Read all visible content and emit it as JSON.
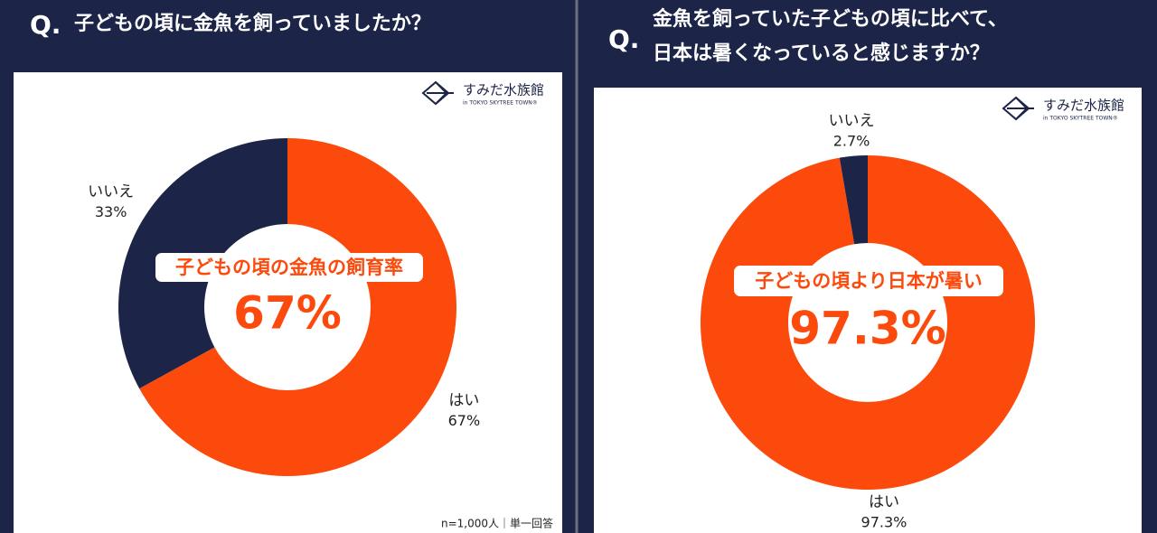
{
  "chart_data": [
    {
      "type": "pie",
      "question": "Q.",
      "title": [
        "子どもの頃に金魚を飼っていましたか？"
      ],
      "logo": {
        "name": "すみだ水族館",
        "sub": "in TOKYO SKYTREE TOWN®"
      },
      "categories": [
        "はい",
        "いいえ"
      ],
      "values": [
        67,
        33
      ],
      "value_labels": [
        "67%",
        "33%"
      ],
      "colors": [
        "#fc4a0c",
        "#1c2447"
      ],
      "annotation": {
        "title": "子どもの頃の金魚の飼育率",
        "value": "67%"
      },
      "note": "n=1,000人｜単一回答"
    },
    {
      "type": "pie",
      "question": "Q.",
      "title": [
        "金魚を飼っていた子どもの頃に比べて、",
        "日本は暑くなっていると感じますか？"
      ],
      "logo": {
        "name": "すみだ水族館",
        "sub": "in TOKYO SKYTREE TOWN®"
      },
      "categories": [
        "はい",
        "いいえ"
      ],
      "values": [
        97.3,
        2.7
      ],
      "value_labels": [
        "97.3%",
        "2.7%"
      ],
      "colors": [
        "#fc4a0c",
        "#1c2447"
      ],
      "annotation": {
        "title": "子どもの頃より日本が暑い",
        "value": "97.3%"
      }
    }
  ]
}
